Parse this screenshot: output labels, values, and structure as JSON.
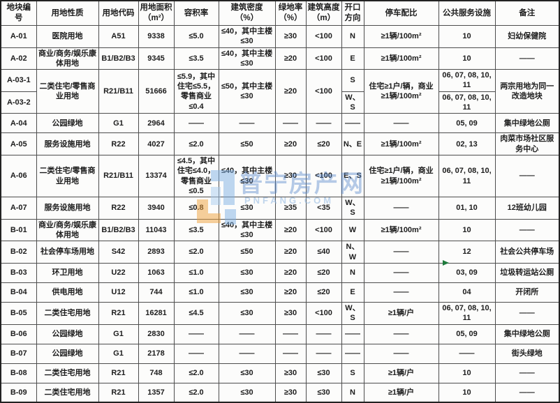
{
  "table": {
    "headers": [
      "地块编\n号",
      "用地性质",
      "用地代码",
      "用地面积\n（m²）",
      "容积率",
      "建筑密度\n（%）",
      "绿地率\n（%）",
      "建筑高度\n（m）",
      "开口\n方向",
      "停车配比",
      "公共服务设施",
      "备注"
    ],
    "rows": [
      {
        "cells": [
          "A-01",
          "医院用地",
          "A51",
          "9338",
          "≤5.0",
          "≤40，其中主楼≤30",
          "≥30",
          "<100",
          "N",
          "≥1辆/100m²",
          "10",
          "妇幼保健院"
        ]
      },
      {
        "cells": [
          "A-02",
          "商业/商务/娱乐康体用地",
          "B1/B2/B3",
          "9345",
          "≤3.5",
          "≤40，其中主楼≤30",
          "≥20",
          "<100",
          "E",
          "≥1辆/100m²",
          "10",
          "——"
        ]
      },
      {
        "cells": [
          "A-03-1",
          {
            "t": "二类住宅/零售商业用地",
            "rs": 2
          },
          {
            "t": "R21/B11",
            "rs": 2
          },
          {
            "t": "51666",
            "rs": 2
          },
          {
            "t": "≤5.9，其中住宅≤5.5，零售商业≤0.4",
            "rs": 2
          },
          {
            "t": "≤50，其中主楼≤30",
            "rs": 2
          },
          {
            "t": "≥20",
            "rs": 2
          },
          {
            "t": "<100",
            "rs": 2
          },
          "S",
          {
            "t": "住宅≥1户/辆，商业≥1辆/100m²",
            "rs": 2
          },
          "06, 07, 08, 10, 11",
          {
            "t": "两宗用地为同一改造地块",
            "rs": 2
          }
        ]
      },
      {
        "cells": [
          "A-03-2",
          "W、S",
          "06, 07, 08, 10, 11"
        ]
      },
      {
        "cells": [
          "A-04",
          "公园绿地",
          "G1",
          "2964",
          "——",
          "——",
          "——",
          "——",
          "——",
          "——",
          "05, 09",
          "集中绿地公厕"
        ]
      },
      {
        "cells": [
          "A-05",
          "服务设施用地",
          "R22",
          "4027",
          "≤2.0",
          "≤50",
          "≥20",
          "≤20",
          "N、E",
          "≥1辆/100m²",
          "02, 13",
          "肉菜市场社区服务中心"
        ]
      },
      {
        "cells": [
          "A-06",
          "二类住宅/零售商业用地",
          "R21/B11",
          "13374",
          "≤4.5，其中住宅≤4.0，零售商业≤0.5",
          "≤40，其中主楼≤30",
          "≥30",
          "<100",
          "E、S",
          "住宅≥1户/辆，商业≥1辆/100m²",
          "06, 07, 08, 10, 11",
          "——"
        ]
      },
      {
        "cells": [
          "A-07",
          "服务设施用地",
          "R22",
          "3940",
          "≤0.8",
          "≤30",
          "≥35",
          "<35",
          "W、S",
          "——",
          "01, 10",
          "12班幼儿园"
        ]
      },
      {
        "cells": [
          "B-01",
          "商业/商务/娱乐康体用地",
          "B1/B2/B3",
          "11043",
          "≤3.5",
          "≤40，其中主楼≤30",
          "≥20",
          "<100",
          "W",
          "≥1辆/100m²",
          "10",
          "——"
        ]
      },
      {
        "cells": [
          "B-02",
          "社会停车场用地",
          "S42",
          "2893",
          "≤2.0",
          "≤50",
          "≥20",
          "≤40",
          "N、W",
          "——",
          "12",
          "社会公共停车场"
        ]
      },
      {
        "cells": [
          "B-03",
          "环卫用地",
          "U22",
          "1063",
          "≤1.0",
          "≤30",
          "≥20",
          "≤20",
          "N",
          "——",
          "03, 09",
          "垃圾转运站公厕"
        ]
      },
      {
        "cells": [
          "B-04",
          "供电用地",
          "U12",
          "744",
          "≤1.0",
          "≤30",
          "≥20",
          "≤20",
          "E",
          "——",
          "04",
          "开闭所"
        ]
      },
      {
        "cells": [
          "B-05",
          "二类住宅用地",
          "R21",
          "16281",
          "≤4.5",
          "≤30",
          "≥30",
          "<100",
          "W、S",
          "≥1辆/户",
          "06, 07, 08, 10, 11",
          "——"
        ]
      },
      {
        "cells": [
          "B-06",
          "公园绿地",
          "G1",
          "2830",
          "——",
          "——",
          "——",
          "——",
          "——",
          "——",
          "05, 09",
          "集中绿地公厕"
        ]
      },
      {
        "cells": [
          "B-07",
          "公园绿地",
          "G1",
          "2178",
          "——",
          "——",
          "——",
          "——",
          "——",
          "——",
          "——",
          "街头绿地"
        ]
      },
      {
        "cells": [
          "B-08",
          "二类住宅用地",
          "R21",
          "748",
          "≤2.0",
          "≤30",
          "≥30",
          "≤30",
          "S",
          "≥1辆/户",
          "10",
          "——"
        ]
      },
      {
        "cells": [
          "B-09",
          "二类住宅用地",
          "R21",
          "1357",
          "≤2.0",
          "≤30",
          "≥30",
          "≤30",
          "N",
          "≥1辆/户",
          "10",
          "——"
        ]
      }
    ]
  },
  "watermark": {
    "site_name_cn": "普宁房产网",
    "site_name_en": "PNFANG.COM"
  },
  "colors": {
    "watermark_blue": "#5284c7",
    "watermark_light_blue": "#8cb4e0",
    "watermark_orange": "#f0a13c",
    "marker_green": "#1e7a3c",
    "table_border": "#4d4d4d",
    "text": "#1c1c1c"
  }
}
